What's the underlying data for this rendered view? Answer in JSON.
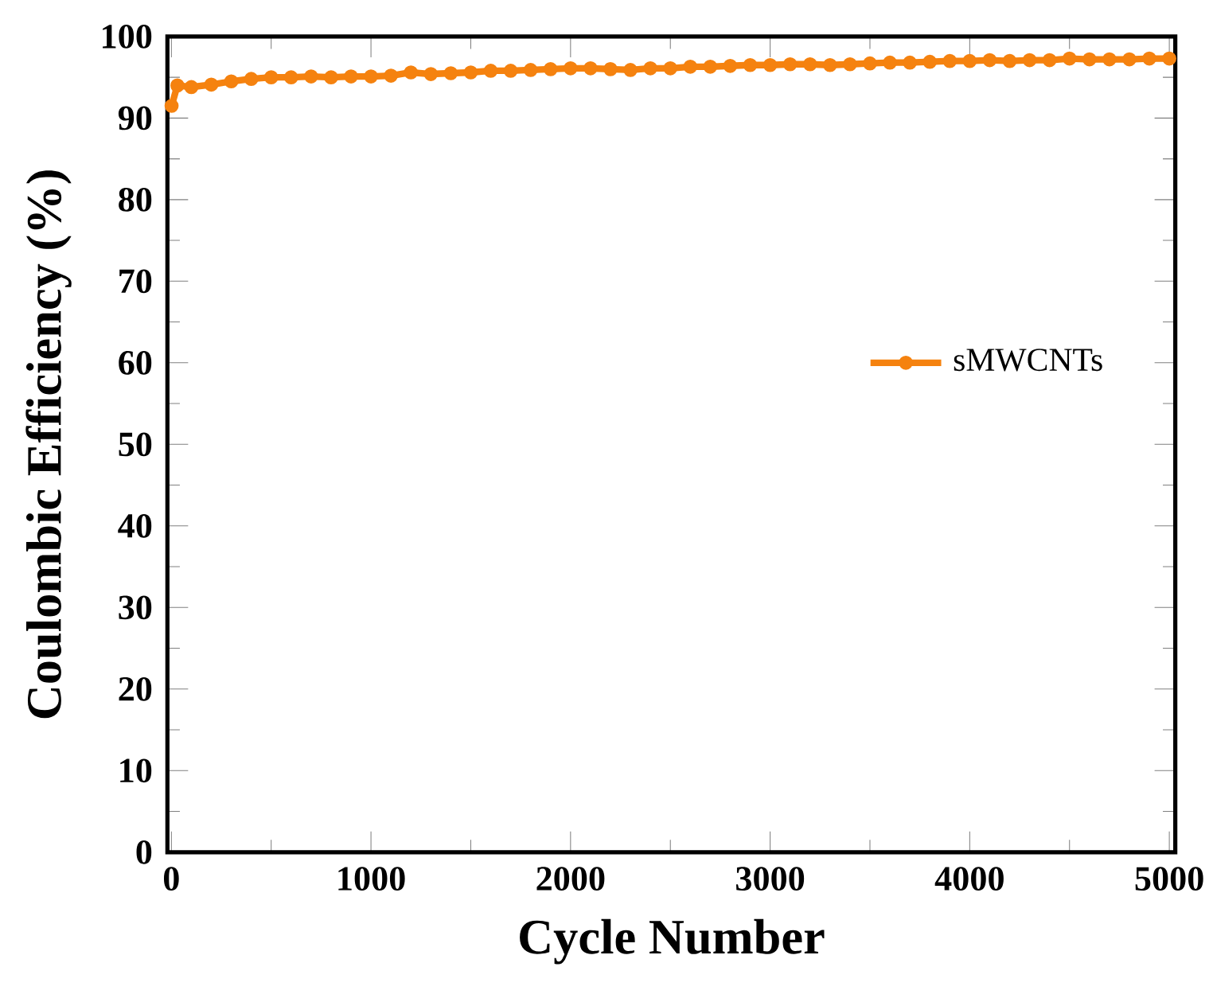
{
  "chart_data": {
    "type": "line",
    "xlabel": "Cycle Number",
    "ylabel": "Coulombic Efficiency (%)",
    "xlim": [
      -20,
      5030
    ],
    "ylim": [
      0,
      100
    ],
    "xticks": [
      0,
      1000,
      2000,
      3000,
      4000,
      5000
    ],
    "yticks": [
      0,
      10,
      20,
      30,
      40,
      50,
      60,
      70,
      80,
      90,
      100
    ],
    "marker": "circle",
    "legend": "right",
    "series": [
      {
        "name": "sMWCNTs",
        "color": "#f5820f",
        "x": [
          1,
          30,
          100,
          200,
          300,
          400,
          500,
          600,
          700,
          800,
          900,
          1000,
          1100,
          1200,
          1300,
          1400,
          1500,
          1600,
          1700,
          1800,
          1900,
          2000,
          2100,
          2200,
          2300,
          2400,
          2500,
          2600,
          2700,
          2800,
          2900,
          3000,
          3100,
          3200,
          3300,
          3400,
          3500,
          3600,
          3700,
          3800,
          3900,
          4000,
          4100,
          4200,
          4300,
          4400,
          4500,
          4600,
          4700,
          4800,
          4900,
          5000
        ],
        "values": [
          91.5,
          94,
          93.8,
          94.1,
          94.5,
          94.8,
          95,
          95,
          95.1,
          95,
          95.1,
          95.1,
          95.2,
          95.6,
          95.4,
          95.5,
          95.6,
          95.8,
          95.8,
          95.9,
          96,
          96.1,
          96.1,
          96,
          95.9,
          96.1,
          96.1,
          96.3,
          96.3,
          96.4,
          96.5,
          96.5,
          96.6,
          96.6,
          96.5,
          96.6,
          96.7,
          96.8,
          96.8,
          96.9,
          97,
          97,
          97.1,
          97,
          97.1,
          97.1,
          97.3,
          97.2,
          97.2,
          97.2,
          97.3,
          97.3
        ]
      }
    ]
  }
}
